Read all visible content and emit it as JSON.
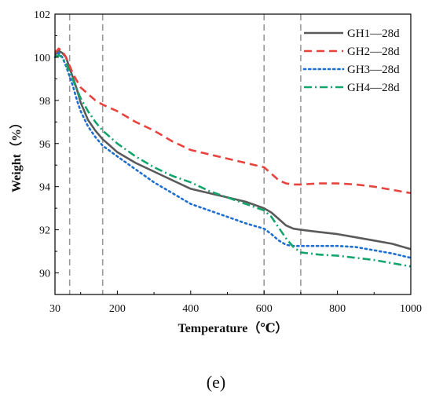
{
  "caption": "(e)",
  "chart_data": {
    "type": "line",
    "xlabel": "Temperature（℃）",
    "ylabel": "Weight（%）",
    "xlim": [
      30,
      1000
    ],
    "ylim": [
      89,
      102
    ],
    "x_ticks": [
      30,
      200,
      400,
      600,
      800,
      1000
    ],
    "y_ticks": [
      90,
      92,
      94,
      96,
      98,
      100,
      102
    ],
    "grid": false,
    "legend_position": "top-right",
    "reference_lines_x": [
      70,
      160,
      600,
      700
    ],
    "series": [
      {
        "name": "GH1—28d",
        "color": "#5a5a5a",
        "dash": "solid",
        "x": [
          30,
          40,
          50,
          60,
          70,
          80,
          90,
          100,
          120,
          140,
          160,
          180,
          200,
          250,
          300,
          350,
          400,
          450,
          500,
          550,
          600,
          620,
          640,
          660,
          680,
          700,
          750,
          800,
          850,
          900,
          950,
          1000
        ],
        "y": [
          100.1,
          100.3,
          100.2,
          100.0,
          99.5,
          99.0,
          98.5,
          97.9,
          97.1,
          96.6,
          96.2,
          95.9,
          95.6,
          95.1,
          94.7,
          94.3,
          93.9,
          93.7,
          93.5,
          93.3,
          93.0,
          92.8,
          92.5,
          92.2,
          92.05,
          92.0,
          91.9,
          91.8,
          91.65,
          91.5,
          91.35,
          91.1
        ]
      },
      {
        "name": "GH2—28d",
        "color": "#e8433f",
        "dash": "long-dash",
        "x": [
          30,
          40,
          50,
          60,
          70,
          80,
          90,
          100,
          120,
          140,
          160,
          200,
          250,
          300,
          350,
          400,
          450,
          500,
          550,
          600,
          620,
          640,
          660,
          680,
          700,
          750,
          800,
          850,
          900,
          950,
          1000
        ],
        "y": [
          100.2,
          100.4,
          100.3,
          100.0,
          99.6,
          99.2,
          98.9,
          98.6,
          98.3,
          98.0,
          97.8,
          97.5,
          97.0,
          96.6,
          96.1,
          95.7,
          95.5,
          95.3,
          95.1,
          94.9,
          94.6,
          94.3,
          94.15,
          94.1,
          94.1,
          94.15,
          94.15,
          94.1,
          94.0,
          93.85,
          93.7
        ]
      },
      {
        "name": "GH3—28d",
        "color": "#1f6fd1",
        "dash": "dotted",
        "x": [
          30,
          40,
          50,
          60,
          70,
          80,
          90,
          100,
          120,
          140,
          160,
          200,
          250,
          300,
          350,
          400,
          450,
          500,
          550,
          600,
          620,
          640,
          660,
          680,
          700,
          750,
          800,
          850,
          900,
          950,
          1000
        ],
        "y": [
          100.0,
          100.2,
          100.0,
          99.6,
          99.1,
          98.6,
          98.0,
          97.5,
          96.8,
          96.3,
          95.9,
          95.4,
          94.8,
          94.2,
          93.7,
          93.2,
          92.9,
          92.6,
          92.3,
          92.05,
          91.8,
          91.5,
          91.3,
          91.25,
          91.25,
          91.25,
          91.25,
          91.2,
          91.05,
          90.9,
          90.7
        ]
      },
      {
        "name": "GH4—28d",
        "color": "#12a56c",
        "dash": "dash-dot",
        "x": [
          30,
          40,
          50,
          60,
          70,
          80,
          90,
          100,
          120,
          140,
          160,
          180,
          200,
          250,
          300,
          350,
          400,
          450,
          500,
          550,
          600,
          620,
          640,
          660,
          680,
          700,
          750,
          800,
          850,
          900,
          950,
          1000
        ],
        "y": [
          100.0,
          100.1,
          100.0,
          99.7,
          99.3,
          98.9,
          98.5,
          98.1,
          97.5,
          97.0,
          96.6,
          96.3,
          96.0,
          95.4,
          94.9,
          94.5,
          94.2,
          93.8,
          93.5,
          93.2,
          92.9,
          92.6,
          92.1,
          91.6,
          91.2,
          90.95,
          90.85,
          90.8,
          90.7,
          90.6,
          90.45,
          90.3
        ]
      }
    ]
  }
}
